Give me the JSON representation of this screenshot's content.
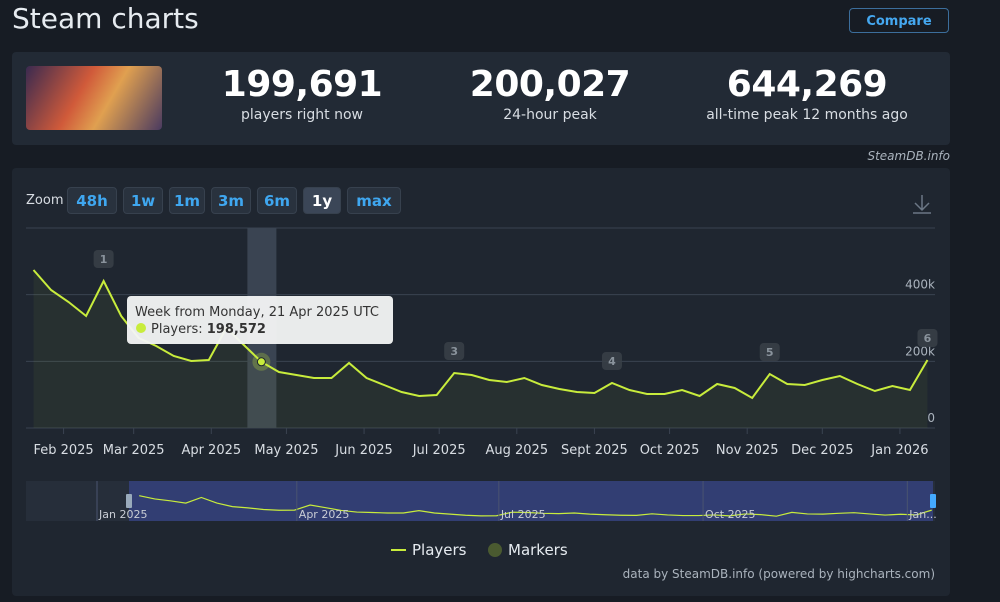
{
  "header": {
    "title": "Steam charts",
    "compare": "Compare"
  },
  "stats": [
    {
      "value": "199,691",
      "label": "players right now"
    },
    {
      "value": "200,027",
      "label": "24-hour peak"
    },
    {
      "value": "644,269",
      "label": "all-time peak 12 months ago"
    }
  ],
  "credit": "SteamDB.info",
  "zoom": {
    "label": "Zoom",
    "buttons": [
      "48h",
      "1w",
      "1m",
      "3m",
      "6m",
      "1y",
      "max"
    ],
    "active": "1y"
  },
  "footer": "data by SteamDB.info (powered by highcharts.com)",
  "chart_data": {
    "type": "line",
    "x": [
      "2025-01-20",
      "2025-01-27",
      "2025-02-03",
      "2025-02-10",
      "2025-02-17",
      "2025-02-24",
      "2025-03-03",
      "2025-03-10",
      "2025-03-17",
      "2025-03-24",
      "2025-03-31",
      "2025-04-07",
      "2025-04-14",
      "2025-04-21",
      "2025-04-28",
      "2025-05-05",
      "2025-05-12",
      "2025-05-19",
      "2025-05-26",
      "2025-06-02",
      "2025-06-09",
      "2025-06-16",
      "2025-06-23",
      "2025-06-30",
      "2025-07-07",
      "2025-07-14",
      "2025-07-21",
      "2025-07-28",
      "2025-08-04",
      "2025-08-11",
      "2025-08-18",
      "2025-08-25",
      "2025-09-01",
      "2025-09-08",
      "2025-09-15",
      "2025-09-22",
      "2025-09-29",
      "2025-10-06",
      "2025-10-13",
      "2025-10-20",
      "2025-10-27",
      "2025-11-03",
      "2025-11-10",
      "2025-11-17",
      "2025-11-24",
      "2025-12-01",
      "2025-12-08",
      "2025-12-15",
      "2025-12-22",
      "2025-12-29",
      "2026-01-05",
      "2026-01-12"
    ],
    "series": [
      {
        "name": "Players",
        "color": "#c8ec3c",
        "values": [
          474000,
          414000,
          378000,
          336000,
          441000,
          336000,
          270000,
          246000,
          216000,
          201000,
          204000,
          300000,
          249000,
          198572,
          168000,
          159000,
          150000,
          150000,
          195000,
          150000,
          129000,
          108000,
          96000,
          99000,
          165000,
          159000,
          144000,
          138000,
          150000,
          129000,
          117000,
          108000,
          105000,
          135000,
          114000,
          102000,
          102000,
          114000,
          96000,
          132000,
          120000,
          90000,
          162000,
          132000,
          129000,
          144000,
          156000,
          132000,
          111000,
          126000,
          114000,
          204000
        ]
      }
    ],
    "markers_name": "Markers",
    "markers_color": "#4a5a30",
    "markers": [
      {
        "x": "2025-02-17",
        "label": "1"
      },
      {
        "x": "2025-07-07",
        "label": "3"
      },
      {
        "x": "2025-09-08",
        "label": "4"
      },
      {
        "x": "2025-11-10",
        "label": "5"
      },
      {
        "x": "2026-01-12",
        "label": "6"
      }
    ],
    "xlim": [
      "2025-01-17",
      "2026-01-15"
    ],
    "xticks": [
      {
        "value": "2025-02-01",
        "label": "Feb 2025"
      },
      {
        "value": "2025-03-01",
        "label": "Mar 2025"
      },
      {
        "value": "2025-04-01",
        "label": "Apr 2025"
      },
      {
        "value": "2025-05-01",
        "label": "May 2025"
      },
      {
        "value": "2025-06-01",
        "label": "Jun 2025"
      },
      {
        "value": "2025-07-01",
        "label": "Jul 2025"
      },
      {
        "value": "2025-08-01",
        "label": "Aug 2025"
      },
      {
        "value": "2025-09-01",
        "label": "Sept 2025"
      },
      {
        "value": "2025-10-01",
        "label": "Oct 2025"
      },
      {
        "value": "2025-11-01",
        "label": "Nov 2025"
      },
      {
        "value": "2025-12-01",
        "label": "Dec 2025"
      },
      {
        "value": "2026-01-01",
        "label": "Jan 2026"
      }
    ],
    "ylim": [
      0,
      600000
    ],
    "yticks": [
      {
        "value": 0,
        "label": "0"
      },
      {
        "value": 200000,
        "label": "200k"
      },
      {
        "value": 400000,
        "label": "400k"
      }
    ],
    "grid": true,
    "tooltip": {
      "title": "Week from Monday, 21 Apr 2025 UTC",
      "label": "Players:",
      "value": 198572,
      "value_label": "198,572",
      "x": "2025-04-21"
    },
    "navigator": {
      "labels": [
        {
          "value": "2025-01-01",
          "label": "Jan 2025"
        },
        {
          "value": "2025-04-01",
          "label": "Apr 2025"
        },
        {
          "value": "2025-07-01",
          "label": "Jul 2025"
        },
        {
          "value": "2025-10-01",
          "label": "Oct 2025"
        },
        {
          "value": "2026-01-01",
          "label": "Jan..."
        }
      ]
    }
  }
}
